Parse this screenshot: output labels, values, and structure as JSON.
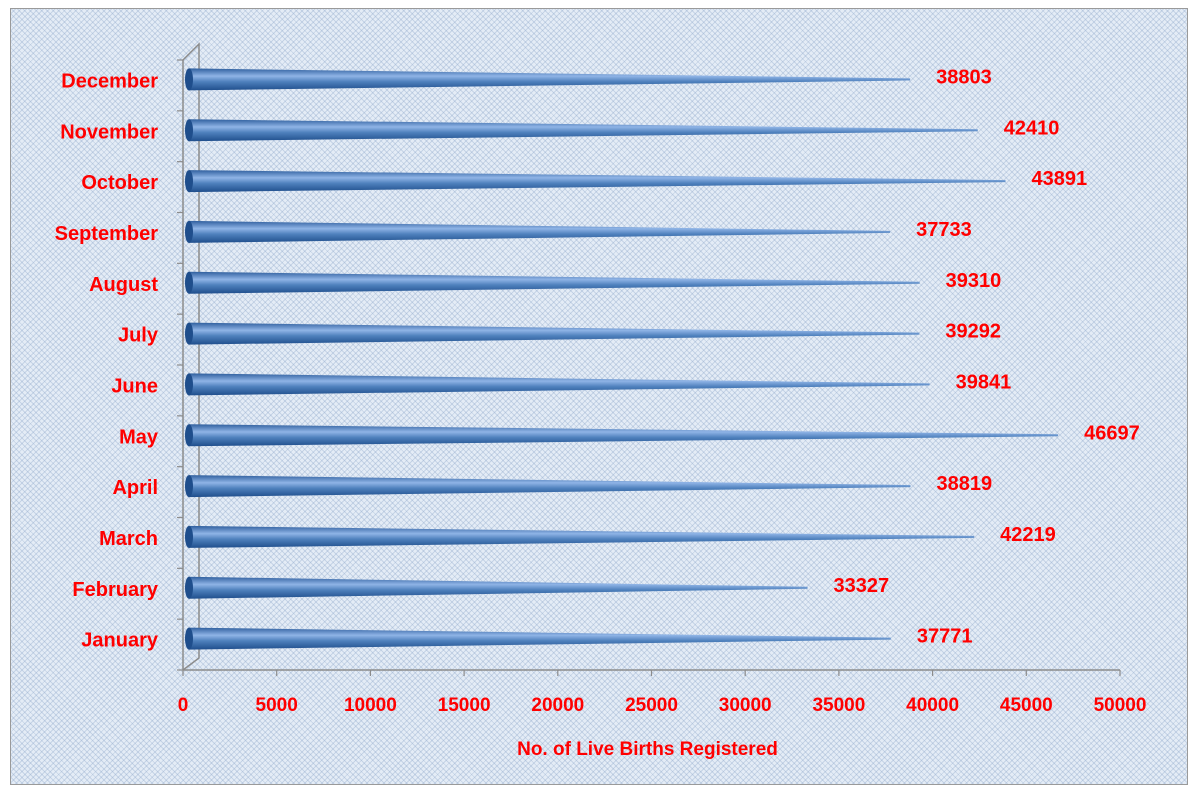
{
  "chart_data": {
    "type": "bar",
    "orientation": "horizontal",
    "categories": [
      "January",
      "February",
      "March",
      "April",
      "May",
      "June",
      "July",
      "August",
      "September",
      "October",
      "November",
      "December"
    ],
    "values": [
      37771,
      33327,
      42219,
      38819,
      46697,
      39841,
      39292,
      39310,
      37733,
      43891,
      42410,
      38803
    ],
    "xlabel": "No. of Live Births Registered",
    "ylabel": "",
    "xlim": [
      0,
      50000
    ],
    "xticks": [
      "0",
      "5000",
      "10000",
      "15000",
      "20000",
      "25000",
      "30000",
      "35000",
      "40000",
      "45000",
      "50000"
    ],
    "grid": false,
    "data_labels": true,
    "colors": {
      "bar": "#4f81bd",
      "bar_dark": "#1f4e8c",
      "bar_light": "#a9c6ec",
      "text": "#ff0000",
      "axis": "#8c8c8c"
    }
  }
}
